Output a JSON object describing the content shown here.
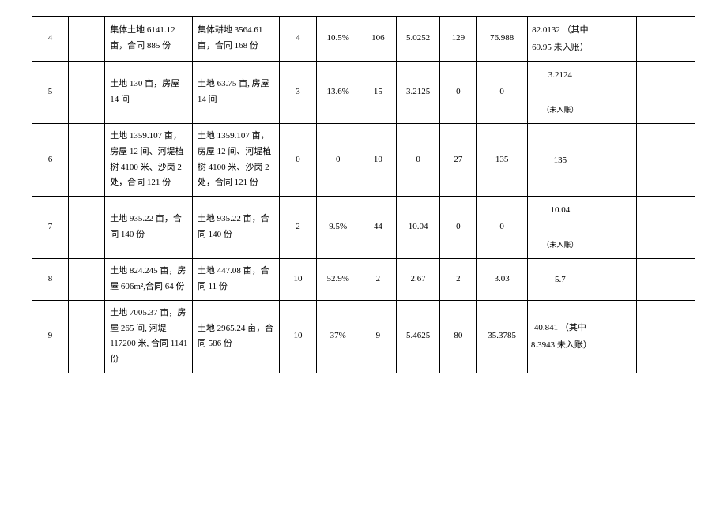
{
  "rows": [
    {
      "idx": "4",
      "desc1": "集体土地 6141.12 亩，合同 885 份",
      "desc2": "集体耕地 3564.61 亩，合同 168 份",
      "n1": "4",
      "pct": "10.5%",
      "n2": "106",
      "v1": "5.0252",
      "n3": "129",
      "v2": "76.988",
      "v3": "82.0132 （其中 69.95 未入账）"
    },
    {
      "idx": "5",
      "desc1": "土地 130 亩，房屋 14 间",
      "desc2": "土地 63.75 亩, 房屋 14 间",
      "n1": "3",
      "pct": "13.6%",
      "n2": "15",
      "v1": "3.2125",
      "n3": "0",
      "v2": "0",
      "v3_main": "3.2124",
      "v3_note": "（未入账）"
    },
    {
      "idx": "6",
      "desc1": "土地 1359.107 亩，房屋 12 间、河堤植树 4100 米、沙岗 2 处，合同 121 份",
      "desc2": "土地 1359.107 亩，房屋 12 间、河堤植树 4100 米、沙岗 2 处，合同 121 份",
      "n1": "0",
      "pct": "0",
      "n2": "10",
      "v1": "0",
      "n3": "27",
      "v2": "135",
      "v3": "135"
    },
    {
      "idx": "7",
      "desc1": "土地 935.22 亩，合同 140 份",
      "desc2": "土地 935.22 亩，合同 140 份",
      "n1": "2",
      "pct": "9.5%",
      "n2": "44",
      "v1": "10.04",
      "n3": "0",
      "v2": "0",
      "v3_main": "10.04",
      "v3_note": "（未入账）"
    },
    {
      "idx": "8",
      "desc1": "土地 824.245 亩，房屋 606m²,合同 64 份",
      "desc2": "土地 447.08 亩，合同 11 份",
      "n1": "10",
      "pct": "52.9%",
      "n2": "2",
      "v1": "2.67",
      "n3": "2",
      "v2": "3.03",
      "v3": "5.7"
    },
    {
      "idx": "9",
      "desc1": "土地 7005.37 亩，房屋 265 间, 河堤 117200 米, 合同 1141 份",
      "desc2": "土地 2965.24 亩，合同 586 份",
      "n1": "10",
      "pct": "37%",
      "n2": "9",
      "v1": "5.4625",
      "n3": "80",
      "v2": "35.3785",
      "v3": "40.841 （其中 8.3943 未入账）"
    }
  ]
}
